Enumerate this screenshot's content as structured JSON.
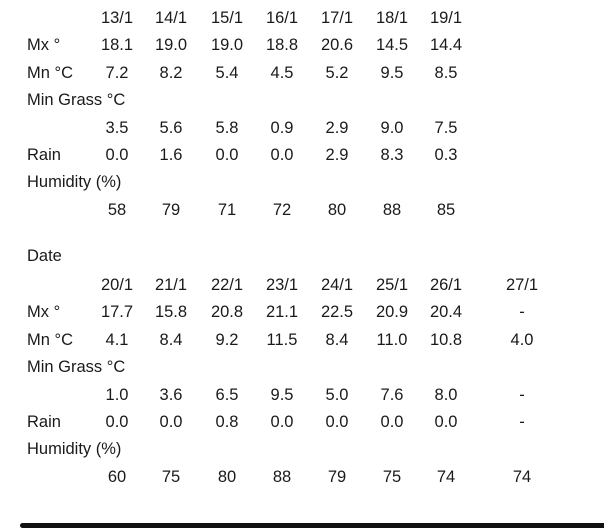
{
  "blocks": [
    {
      "heading": "",
      "dates": [
        "13/1",
        "14/1",
        "15/1",
        "16/1",
        "17/1",
        "18/1",
        "19/1"
      ],
      "mx_label": "Mx °",
      "mx": [
        "18.1",
        "19.0",
        "19.0",
        "18.8",
        "20.6",
        "14.5",
        "14.4"
      ],
      "mn_label": "Mn °C",
      "mn": [
        "7.2",
        "8.2",
        "5.4",
        "4.5",
        "5.2",
        "9.5",
        "8.5"
      ],
      "grass_label": "Min Grass °C",
      "grass": [
        "3.5",
        "5.6",
        "5.8",
        "0.9",
        "2.9",
        "9.0",
        "7.5"
      ],
      "rain_label": "Rain",
      "rain": [
        "0.0",
        "1.6",
        "0.0",
        "0.0",
        "2.9",
        "8.3",
        "0.3"
      ],
      "humidity_label": "Humidity (%)",
      "humidity": [
        "58",
        "79",
        "71",
        "72",
        "80",
        "88",
        "85"
      ]
    },
    {
      "heading": "Date",
      "dates": [
        "20/1",
        "21/1",
        "22/1",
        "23/1",
        "24/1",
        "25/1",
        "26/1",
        "27/1"
      ],
      "mx_label": "Mx °",
      "mx": [
        "17.7",
        "15.8",
        "20.8",
        "21.1",
        "22.5",
        "20.9",
        "20.4",
        "-"
      ],
      "mn_label": "Mn °C",
      "mn": [
        "4.1",
        "8.4",
        "9.2",
        "11.5",
        "8.4",
        "11.0",
        "10.8",
        "4.0"
      ],
      "grass_label": "Min Grass °C",
      "grass": [
        "1.0",
        "3.6",
        "6.5",
        "9.5",
        "5.0",
        "7.6",
        "8.0",
        "-"
      ],
      "rain_label": "Rain",
      "rain": [
        "0.0",
        "0.0",
        "0.8",
        "0.0",
        "0.0",
        "0.0",
        "0.0",
        "-"
      ],
      "humidity_label": "Humidity (%)",
      "humidity": [
        "60",
        "75",
        "80",
        "88",
        "79",
        "75",
        "74",
        "74"
      ]
    }
  ]
}
